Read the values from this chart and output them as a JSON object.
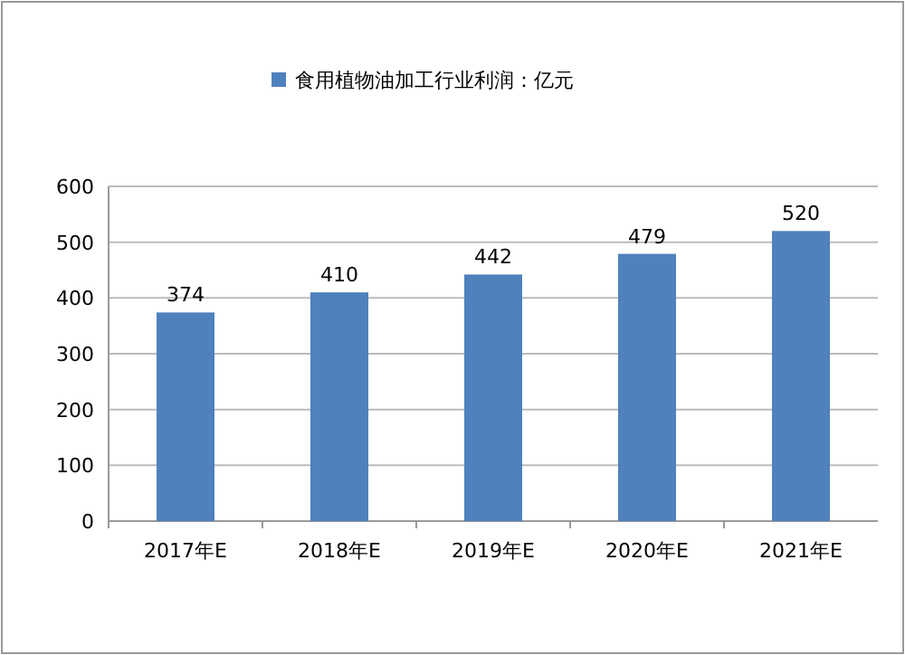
{
  "chart_data": {
    "type": "bar",
    "categories": [
      "2017年E",
      "2018年E",
      "2019年E",
      "2020年E",
      "2021年E"
    ],
    "series": [
      {
        "name": "食用植物油加工行业利润：亿元",
        "color": "#4f81bd",
        "values": [
          374,
          410,
          442,
          479,
          520
        ]
      }
    ],
    "ylim": [
      0,
      600
    ],
    "yticks": [
      0,
      100,
      200,
      300,
      400,
      500,
      600
    ],
    "grid": "y",
    "legend": "top",
    "data_labels": true
  }
}
